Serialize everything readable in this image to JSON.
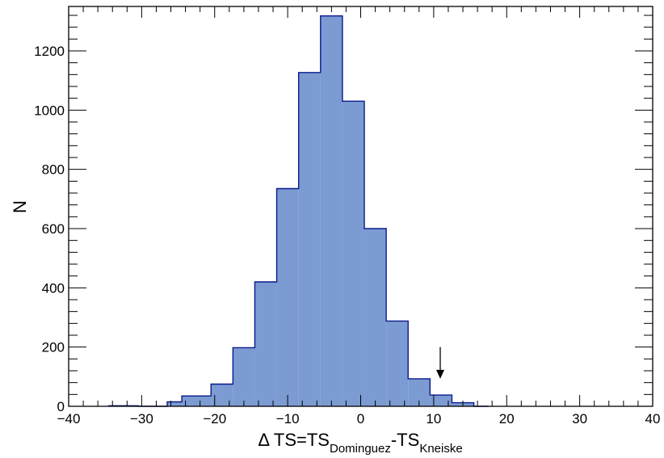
{
  "chart_data": {
    "type": "histogram",
    "title": "",
    "xlabel": {
      "prefix": "Δ TS=TS",
      "sub1": "Dominguez",
      "middle": "-TS",
      "sub2": "Kneiske"
    },
    "ylabel": "N",
    "xlim": [
      -40,
      40
    ],
    "ylim": [
      0,
      1350
    ],
    "xticks": [
      "−40",
      "−30",
      "−20",
      "−10",
      "0",
      "10",
      "20",
      "30",
      "40"
    ],
    "xtick_values": [
      -40,
      -30,
      -20,
      -10,
      0,
      10,
      20,
      30,
      40
    ],
    "yticks": [
      "0",
      "200",
      "400",
      "600",
      "800",
      "1000",
      "1200"
    ],
    "ytick_values": [
      0,
      200,
      400,
      600,
      800,
      1000,
      1200
    ],
    "bin_edges": [
      -34.5,
      -30.5,
      -26.5,
      -24.5,
      -20.5,
      -17.5,
      -14.5,
      -11.5,
      -8.5,
      -5.5,
      -2.5,
      0.5,
      3.5,
      6.5,
      9.5,
      12.5,
      15.5,
      17.5
    ],
    "counts": [
      2,
      0,
      15,
      35,
      75,
      198,
      420,
      735,
      1127,
      1318,
      1030,
      600,
      288,
      93,
      38,
      12,
      0
    ],
    "fill_color": "#7b9bd2",
    "edge_color": "#0a1a8c",
    "arrow": {
      "x": 10.9,
      "y_from": 200,
      "y_to": 93
    },
    "grid": false
  }
}
